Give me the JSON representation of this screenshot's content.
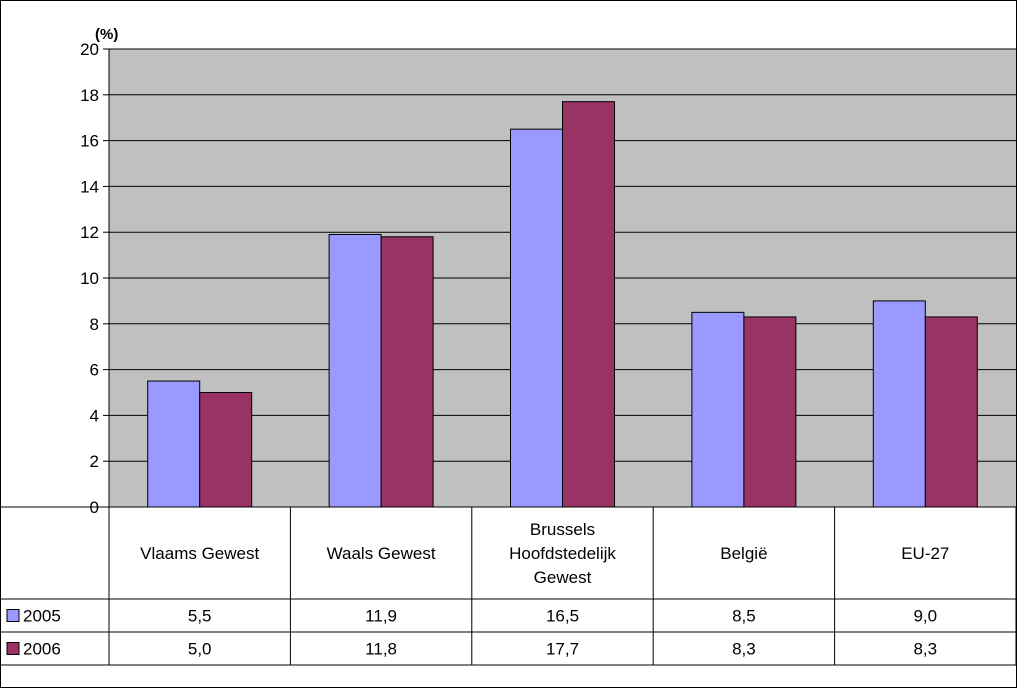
{
  "chart_data": {
    "type": "bar",
    "unit_label": "(%)",
    "categories": [
      "Vlaams Gewest",
      "Waals Gewest",
      "Brussels Hoofdstedelijk Gewest",
      "België",
      "EU-27"
    ],
    "category_lines": [
      [
        "Vlaams Gewest"
      ],
      [
        "Waals Gewest"
      ],
      [
        "Brussels",
        "Hoofdstedelijk",
        "Gewest"
      ],
      [
        "België"
      ],
      [
        "EU-27"
      ]
    ],
    "series": [
      {
        "name": "2005",
        "color": "#9999FF",
        "values": [
          5.5,
          11.9,
          16.5,
          8.5,
          9.0
        ],
        "labels": [
          "5,5",
          "11,9",
          "16,5",
          "8,5",
          "9,0"
        ]
      },
      {
        "name": "2006",
        "color": "#993366",
        "values": [
          5.0,
          11.8,
          17.7,
          8.3,
          8.3
        ],
        "labels": [
          "5,0",
          "11,8",
          "17,7",
          "8,3",
          "8,3"
        ]
      }
    ],
    "ylim": [
      0,
      20
    ],
    "yticks": [
      0,
      2,
      4,
      6,
      8,
      10,
      12,
      14,
      16,
      18,
      20
    ],
    "plot_background": "#C0C0C0",
    "grid": true,
    "legend": "data-table"
  }
}
